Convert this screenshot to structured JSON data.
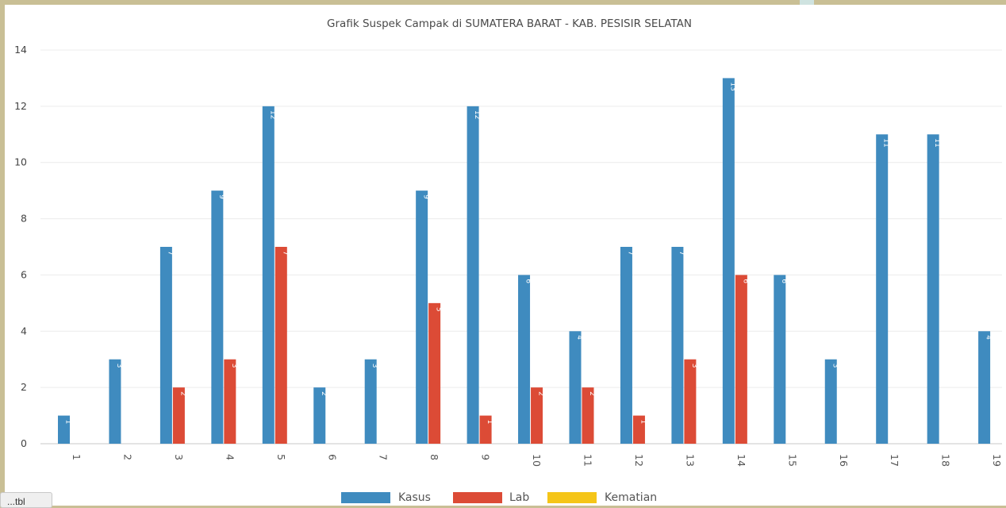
{
  "chart_data": {
    "type": "bar",
    "title": "Grafik Suspek Campak di SUMATERA BARAT - KAB. PESISIR SELATAN",
    "xlabel": "",
    "ylabel": "",
    "ylim": [
      0,
      14
    ],
    "yticks": [
      "0",
      "2",
      "4",
      "6",
      "8",
      "10",
      "12",
      "14"
    ],
    "grid": true,
    "legend_position": "bottom",
    "categories": [
      "1",
      "2",
      "3",
      "4",
      "5",
      "6",
      "7",
      "8",
      "9",
      "10",
      "11",
      "12",
      "13",
      "14",
      "15",
      "16",
      "17",
      "18",
      "19"
    ],
    "series": [
      {
        "name": "Kasus",
        "color": "#3f8bbf",
        "values": [
          1,
          3,
          7,
          9,
          12,
          2,
          3,
          9,
          12,
          6,
          4,
          7,
          7,
          13,
          6,
          3,
          11,
          11,
          4
        ]
      },
      {
        "name": "Lab",
        "color": "#dc4b36",
        "values": [
          0,
          0,
          2,
          3,
          7,
          0,
          0,
          5,
          1,
          2,
          2,
          1,
          3,
          6,
          0,
          0,
          0,
          0,
          0
        ]
      },
      {
        "name": "Kematian",
        "color": "#f5c518",
        "values": [
          0,
          0,
          0,
          0,
          0,
          0,
          0,
          0,
          0,
          0,
          0,
          0,
          0,
          0,
          0,
          0,
          0,
          0,
          0
        ]
      }
    ]
  },
  "corner_tab": {
    "label": "...tbl"
  }
}
